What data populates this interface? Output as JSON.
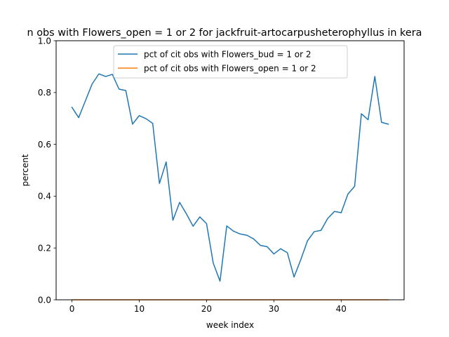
{
  "chart_data": {
    "type": "line",
    "title": "n obs with Flowers_open = 1 or 2 for jackfruit-artocarpusheterophyllus in kera",
    "xlabel": "week index",
    "ylabel": "percent",
    "xlim": [
      -2.35,
      49.35
    ],
    "ylim": [
      0,
      1
    ],
    "xticks": [
      0,
      10,
      20,
      30,
      40
    ],
    "yticks": [
      0.0,
      0.2,
      0.4,
      0.6,
      0.8,
      1.0
    ],
    "xtick_labels": [
      "0",
      "10",
      "20",
      "30",
      "40"
    ],
    "ytick_labels": [
      "0.0",
      "0.2",
      "0.4",
      "0.6",
      "0.8",
      "1.0"
    ],
    "grid": false,
    "legend_position": "top-center",
    "x": [
      0,
      1,
      2,
      3,
      4,
      5,
      6,
      7,
      8,
      9,
      10,
      11,
      12,
      13,
      14,
      15,
      16,
      17,
      18,
      19,
      20,
      21,
      22,
      23,
      24,
      25,
      26,
      27,
      28,
      29,
      30,
      31,
      32,
      33,
      34,
      35,
      36,
      37,
      38,
      39,
      40,
      41,
      42,
      43,
      44,
      45,
      46,
      47
    ],
    "series": [
      {
        "name": "pct of cit obs with Flowers_bud = 1 or 2",
        "color": "#1f77b4",
        "values": [
          0.743,
          0.703,
          0.768,
          0.833,
          0.872,
          0.862,
          0.87,
          0.813,
          0.808,
          0.678,
          0.711,
          0.699,
          0.681,
          0.449,
          0.532,
          0.307,
          0.376,
          0.332,
          0.284,
          0.32,
          0.294,
          0.141,
          0.072,
          0.285,
          0.265,
          0.254,
          0.249,
          0.235,
          0.21,
          0.205,
          0.177,
          0.197,
          0.182,
          0.088,
          0.155,
          0.228,
          0.263,
          0.268,
          0.314,
          0.341,
          0.336,
          0.408,
          0.438,
          0.718,
          0.695,
          0.862,
          0.685,
          0.678
        ]
      },
      {
        "name": "pct of cit obs with Flowers_open = 1 or 2",
        "color": "#ff7f0e",
        "values": [
          0,
          0,
          0,
          0,
          0,
          0,
          0,
          0,
          0,
          0,
          0,
          0,
          0,
          0,
          0,
          0,
          0,
          0,
          0,
          0,
          0,
          0,
          0,
          0,
          0,
          0,
          0,
          0,
          0,
          0,
          0,
          0,
          0,
          0,
          0,
          0,
          0,
          0,
          0,
          0,
          0,
          0,
          0,
          0,
          0,
          0,
          0,
          0
        ]
      }
    ]
  }
}
